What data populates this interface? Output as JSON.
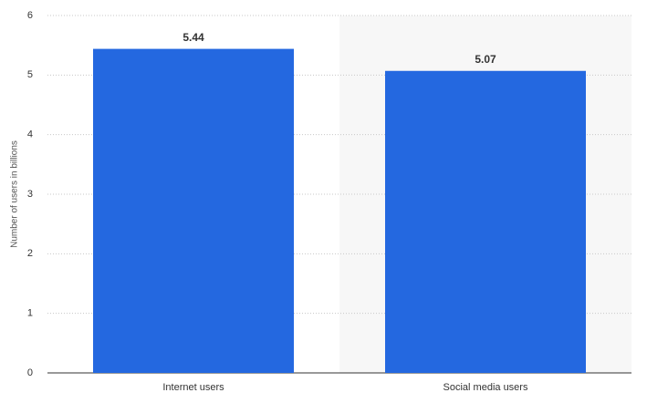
{
  "chart_data": {
    "type": "bar",
    "y_label": "Number of users in billions",
    "categories": [
      "Internet users",
      "Social media users"
    ],
    "values": [
      5.44,
      5.07
    ],
    "color": "#2468e0",
    "ylim": [
      0,
      6
    ],
    "yticks": [
      0,
      1,
      2,
      3,
      4,
      5,
      6
    ],
    "grid": true
  }
}
